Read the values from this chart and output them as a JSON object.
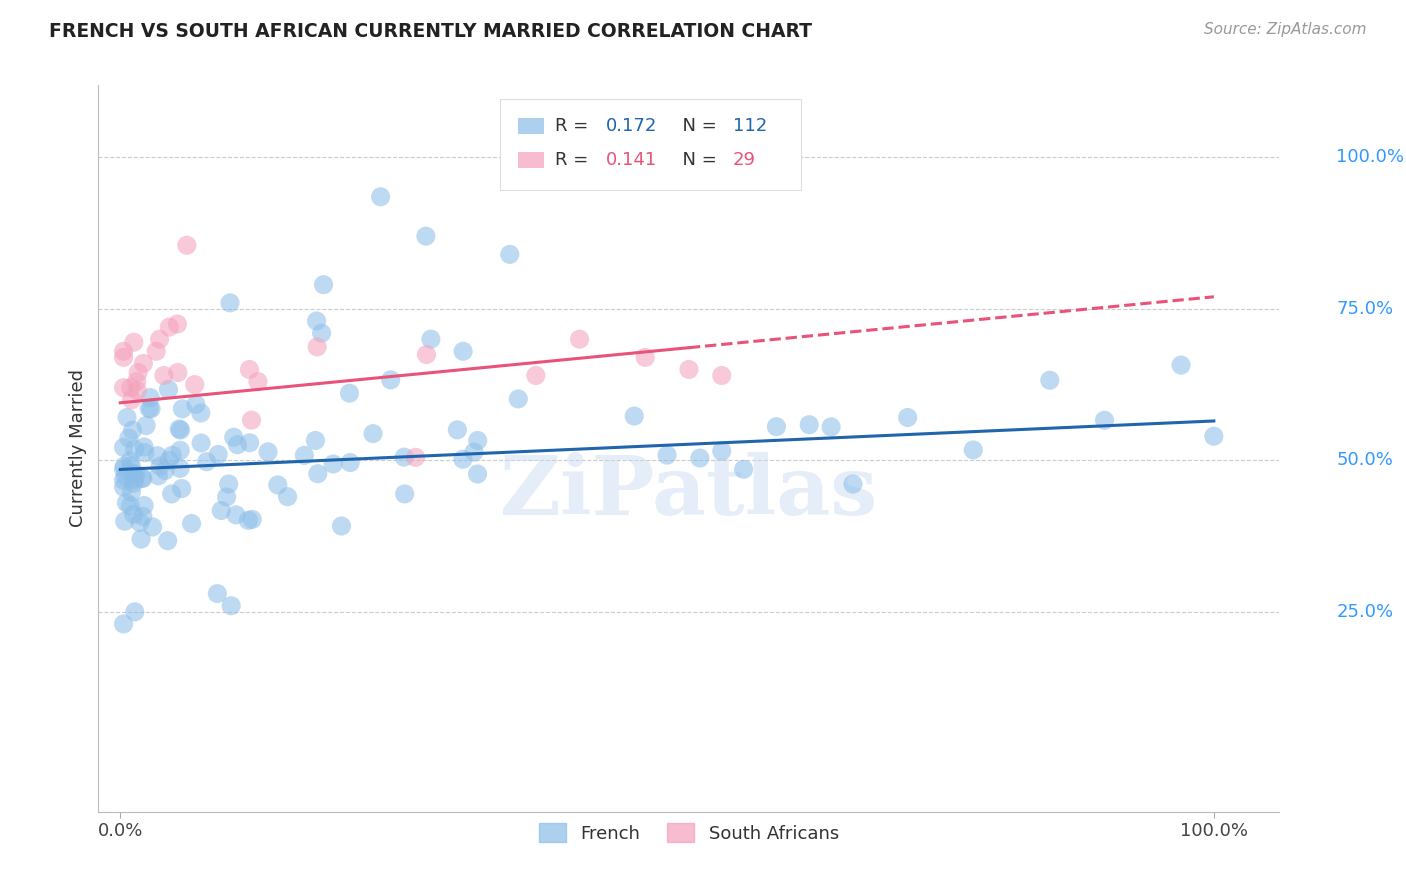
{
  "title": "FRENCH VS SOUTH AFRICAN CURRENTLY MARRIED CORRELATION CHART",
  "source": "Source: ZipAtlas.com",
  "ylabel": "Currently Married",
  "watermark": "ZiPatlas",
  "french_R": 0.172,
  "french_N": 112,
  "sa_R": 0.141,
  "sa_N": 29,
  "french_color": "#8abde8",
  "sa_color": "#f4a0bb",
  "french_line_color": "#2165ac",
  "sa_line_color": "#e8537a",
  "legend_r_color_french": "#2165ac",
  "legend_r_color_sa": "#e8537a",
  "ytick_labels": [
    "100.0%",
    "75.0%",
    "50.0%",
    "25.0%"
  ],
  "ytick_values": [
    1.0,
    0.75,
    0.5,
    0.25
  ],
  "ylim": [
    -0.08,
    1.12
  ],
  "xlim": [
    -0.02,
    1.06
  ],
  "french_line_x0": 0.0,
  "french_line_x1": 1.0,
  "french_line_y0": 0.485,
  "french_line_y1": 0.565,
  "sa_line_x0": 0.0,
  "sa_line_x1": 1.0,
  "sa_line_y0": 0.595,
  "sa_line_y1": 0.77,
  "sa_line_solid_end": 0.52
}
